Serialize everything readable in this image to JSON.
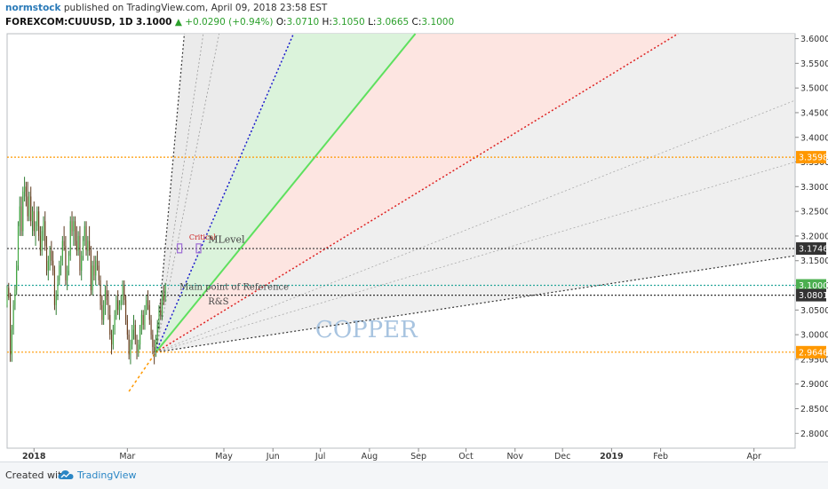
{
  "header": {
    "author": "normstock",
    "published": "published on TradingView.com, April 09, 2018 23:58 EST",
    "symbol": "FOREXCOM:CUUUSD, 1D",
    "price": "3.1000",
    "change_arrow": "▲",
    "change": "+0.0290 (+0.94%)",
    "o_label": "O:",
    "o_value": "3.0710",
    "h_label": "H:",
    "h_value": "3.1050",
    "l_label": "L:",
    "l_value": "3.0665",
    "c_label": "C:",
    "c_value": "3.1000"
  },
  "footer": {
    "created_with": "Created with",
    "brand": "TradingView"
  },
  "chart_data": {
    "type": "candlestick",
    "symbol": "FOREXCOM:CUUUSD",
    "interval": "1D",
    "watermark": "COPPER",
    "ylim": [
      2.77,
      3.61
    ],
    "y_ticks": [
      "3.6000",
      "3.5500",
      "3.5000",
      "3.4500",
      "3.4000",
      "3.3500",
      "3.3000",
      "3.2500",
      "3.2000",
      "3.1500",
      "3.1000",
      "3.0500",
      "3.0000",
      "2.9500",
      "2.9000",
      "2.8500",
      "2.8000"
    ],
    "x_ticks": [
      {
        "label": "2018",
        "x": 0
      },
      {
        "label": "Mar",
        "x": 59
      },
      {
        "label": "May",
        "x": 120
      },
      {
        "label": "Jun",
        "x": 151
      },
      {
        "label": "Jul",
        "x": 181
      },
      {
        "label": "Aug",
        "x": 212
      },
      {
        "label": "Sep",
        "x": 243
      },
      {
        "label": "Oct",
        "x": 273
      },
      {
        "label": "Nov",
        "x": 304
      },
      {
        "label": "Dec",
        "x": 334
      },
      {
        "label": "2019",
        "x": 365
      },
      {
        "label": "Feb",
        "x": 396
      },
      {
        "label": "Apr",
        "x": 455
      }
    ],
    "xlim": [
      -17,
      481
    ],
    "price_lines": [
      {
        "value": 3.3598,
        "label": "3.3598",
        "color": "#ff9800",
        "bg": "#ff9800",
        "style": "dotted"
      },
      {
        "value": 3.1746,
        "label": "3.1746",
        "color": "#333333",
        "bg": "#333333",
        "style": "dotted"
      },
      {
        "value": 3.1,
        "label": "3.1000",
        "color": "#26a69a",
        "bg": "#4caf50",
        "style": "dotted"
      },
      {
        "value": 3.0801,
        "label": "3.0801",
        "color": "#333333",
        "bg": "#333333",
        "style": "dotted"
      },
      {
        "value": 2.9646,
        "label": "2.9646",
        "color": "#ff9800",
        "bg": "#ff9800",
        "style": "dotted"
      }
    ],
    "fan_origin": {
      "x": 77,
      "y": 2.9646
    },
    "fan_lines": [
      {
        "to": {
          "x": 95,
          "y": 3.61
        },
        "color": "#333333",
        "style": "dotted",
        "width": 1.2
      },
      {
        "to": {
          "x": 107,
          "y": 3.61
        },
        "color": "#999999",
        "style": "dotted",
        "width": 0.8
      },
      {
        "to": {
          "x": 117,
          "y": 3.61
        },
        "color": "#999999",
        "style": "dotted",
        "width": 0.8
      },
      {
        "to": {
          "x": 164,
          "y": 3.61
        },
        "color": "#1a1acc",
        "style": "dotted",
        "width": 1.5
      },
      {
        "to": {
          "x": 241,
          "y": 3.61
        },
        "color": "#5ee05e",
        "style": "solid",
        "width": 2
      },
      {
        "to": {
          "x": 407,
          "y": 3.61
        },
        "color": "#dd2222",
        "style": "dotted",
        "width": 1.5
      },
      {
        "to": {
          "x": 481,
          "y": 3.475
        },
        "color": "#aaaaaa",
        "style": "dotted",
        "width": 0.8
      },
      {
        "to": {
          "x": 481,
          "y": 3.35
        },
        "color": "#aaaaaa",
        "style": "dotted",
        "width": 0.8
      },
      {
        "to": {
          "x": 481,
          "y": 3.16
        },
        "color": "#333333",
        "style": "dotted",
        "width": 1.2
      }
    ],
    "extra_lines": [
      {
        "from": {
          "x": 60,
          "y": 2.885
        },
        "to": {
          "x": 77,
          "y": 2.9646
        },
        "color": "#ff9800",
        "style": "dotted",
        "width": 1.5
      }
    ],
    "fills": [
      {
        "between": [
          0,
          4
        ],
        "color": "#e8e8e8"
      },
      {
        "between": [
          3,
          4
        ],
        "color": "#d8f5d8"
      },
      {
        "between": [
          4,
          5
        ],
        "color": "#fde0dc"
      },
      {
        "between": [
          5,
          8
        ],
        "color": "#ececec"
      }
    ],
    "annotations": [
      {
        "text": "Critical",
        "x": 98,
        "y": 3.193,
        "color": "#cc2222",
        "font_size": 8
      },
      {
        "text": "MLevel",
        "x": 110,
        "y": 3.186,
        "color": "#444444",
        "font_size": 11
      },
      {
        "text": "Main point of Reference",
        "x": 92,
        "y": 3.091,
        "color": "#444444",
        "font_size": 10
      },
      {
        "text": "R&S",
        "x": 110,
        "y": 3.061,
        "color": "#444444",
        "font_size": 10
      }
    ],
    "markers": [
      {
        "x": 92,
        "y": 3.175,
        "color": "#9c6ad4"
      },
      {
        "x": 104,
        "y": 3.175,
        "color": "#9c6ad4"
      }
    ],
    "candles": [
      [
        -17,
        3.06,
        3.1,
        3.055,
        3.095
      ],
      [
        -16,
        3.095,
        3.105,
        3.07,
        3.075
      ],
      [
        -15,
        3.075,
        3.085,
        2.945,
        2.96
      ],
      [
        -14,
        2.96,
        3.02,
        2.945,
        3.01
      ],
      [
        -13,
        3.01,
        3.07,
        3.0,
        3.06
      ],
      [
        -12,
        3.06,
        3.1,
        3.05,
        3.09
      ],
      [
        -11,
        3.09,
        3.15,
        3.08,
        3.14
      ],
      [
        -10,
        3.14,
        3.23,
        3.13,
        3.22
      ],
      [
        -9,
        3.22,
        3.28,
        3.2,
        3.26
      ],
      [
        -8,
        3.26,
        3.28,
        3.2,
        3.21
      ],
      [
        -7,
        3.21,
        3.3,
        3.2,
        3.29
      ],
      [
        -6,
        3.29,
        3.32,
        3.27,
        3.3
      ],
      [
        -5,
        3.3,
        3.31,
        3.26,
        3.28
      ],
      [
        -4,
        3.28,
        3.31,
        3.23,
        3.24
      ],
      [
        -3,
        3.24,
        3.29,
        3.23,
        3.28
      ],
      [
        -2,
        3.28,
        3.3,
        3.22,
        3.23
      ],
      [
        -1,
        3.23,
        3.26,
        3.2,
        3.25
      ],
      [
        0,
        3.25,
        3.27,
        3.2,
        3.21
      ],
      [
        1,
        3.21,
        3.23,
        3.18,
        3.22
      ],
      [
        2,
        3.22,
        3.26,
        3.21,
        3.25
      ],
      [
        3,
        3.25,
        3.26,
        3.19,
        3.2
      ],
      [
        4,
        3.2,
        3.22,
        3.16,
        3.17
      ],
      [
        5,
        3.17,
        3.22,
        3.16,
        3.21
      ],
      [
        6,
        3.21,
        3.24,
        3.19,
        3.23
      ],
      [
        7,
        3.23,
        3.25,
        3.17,
        3.18
      ],
      [
        8,
        3.18,
        3.2,
        3.12,
        3.13
      ],
      [
        9,
        3.13,
        3.16,
        3.11,
        3.15
      ],
      [
        10,
        3.15,
        3.18,
        3.13,
        3.17
      ],
      [
        11,
        3.17,
        3.19,
        3.14,
        3.15
      ],
      [
        12,
        3.15,
        3.17,
        3.12,
        3.13
      ],
      [
        13,
        3.13,
        3.14,
        3.05,
        3.06
      ],
      [
        14,
        3.06,
        3.09,
        3.04,
        3.08
      ],
      [
        15,
        3.08,
        3.12,
        3.07,
        3.11
      ],
      [
        16,
        3.11,
        3.15,
        3.1,
        3.14
      ],
      [
        17,
        3.14,
        3.16,
        3.12,
        3.15
      ],
      [
        18,
        3.15,
        3.2,
        3.14,
        3.19
      ],
      [
        19,
        3.19,
        3.22,
        3.17,
        3.18
      ],
      [
        20,
        3.18,
        3.2,
        3.1,
        3.11
      ],
      [
        21,
        3.11,
        3.14,
        3.09,
        3.13
      ],
      [
        22,
        3.13,
        3.17,
        3.12,
        3.16
      ],
      [
        23,
        3.16,
        3.24,
        3.15,
        3.23
      ],
      [
        24,
        3.23,
        3.25,
        3.2,
        3.21
      ],
      [
        25,
        3.21,
        3.24,
        3.18,
        3.23
      ],
      [
        26,
        3.23,
        3.24,
        3.18,
        3.19
      ],
      [
        27,
        3.19,
        3.22,
        3.16,
        3.17
      ],
      [
        28,
        3.17,
        3.21,
        3.16,
        3.2
      ],
      [
        29,
        3.2,
        3.22,
        3.12,
        3.13
      ],
      [
        30,
        3.13,
        3.17,
        3.11,
        3.16
      ],
      [
        31,
        3.16,
        3.2,
        3.15,
        3.19
      ],
      [
        32,
        3.19,
        3.23,
        3.18,
        3.22
      ],
      [
        33,
        3.22,
        3.23,
        3.16,
        3.17
      ],
      [
        34,
        3.17,
        3.2,
        3.15,
        3.19
      ],
      [
        35,
        3.19,
        3.22,
        3.16,
        3.17
      ],
      [
        36,
        3.17,
        3.18,
        3.08,
        3.09
      ],
      [
        37,
        3.09,
        3.15,
        3.08,
        3.14
      ],
      [
        38,
        3.14,
        3.16,
        3.11,
        3.12
      ],
      [
        39,
        3.12,
        3.16,
        3.1,
        3.15
      ],
      [
        40,
        3.15,
        3.17,
        3.13,
        3.14
      ],
      [
        41,
        3.14,
        3.15,
        3.1,
        3.11
      ],
      [
        42,
        3.11,
        3.12,
        3.05,
        3.06
      ],
      [
        43,
        3.06,
        3.08,
        3.02,
        3.03
      ],
      [
        44,
        3.03,
        3.07,
        3.02,
        3.06
      ],
      [
        45,
        3.06,
        3.1,
        3.04,
        3.09
      ],
      [
        46,
        3.09,
        3.11,
        3.06,
        3.07
      ],
      [
        47,
        3.07,
        3.09,
        3.03,
        3.04
      ],
      [
        48,
        3.04,
        3.06,
        2.99,
        3.0
      ],
      [
        49,
        3.0,
        3.01,
        2.96,
        2.98
      ],
      [
        50,
        2.98,
        3.02,
        2.97,
        3.01
      ],
      [
        51,
        3.01,
        3.05,
        3.0,
        3.04
      ],
      [
        52,
        3.04,
        3.08,
        3.03,
        3.07
      ],
      [
        53,
        3.07,
        3.09,
        3.04,
        3.05
      ],
      [
        54,
        3.05,
        3.07,
        3.03,
        3.06
      ],
      [
        55,
        3.06,
        3.08,
        3.05,
        3.07
      ],
      [
        56,
        3.07,
        3.11,
        3.06,
        3.1
      ],
      [
        57,
        3.1,
        3.11,
        3.06,
        3.07
      ],
      [
        58,
        3.07,
        3.08,
        3.02,
        3.03
      ],
      [
        59,
        3.03,
        3.04,
        2.99,
        3.0
      ],
      [
        60,
        3.0,
        3.01,
        2.95,
        2.96
      ],
      [
        61,
        2.96,
        2.99,
        2.94,
        2.98
      ],
      [
        62,
        2.98,
        3.02,
        2.97,
        3.01
      ],
      [
        63,
        3.01,
        3.04,
        2.99,
        3.02
      ],
      [
        64,
        3.02,
        3.03,
        2.98,
        2.99
      ],
      [
        65,
        2.99,
        3.0,
        2.95,
        2.965
      ],
      [
        66,
        2.965,
        2.99,
        2.955,
        2.98
      ],
      [
        67,
        2.98,
        3.02,
        2.97,
        3.01
      ],
      [
        68,
        3.01,
        3.05,
        3.0,
        3.04
      ],
      [
        69,
        3.04,
        3.05,
        3.01,
        3.02
      ],
      [
        70,
        3.02,
        3.06,
        3.01,
        3.05
      ],
      [
        71,
        3.05,
        3.08,
        3.04,
        3.07
      ],
      [
        72,
        3.07,
        3.09,
        3.05,
        3.06
      ],
      [
        73,
        3.06,
        3.07,
        3.02,
        3.03
      ],
      [
        74,
        3.03,
        3.04,
        2.99,
        3.0
      ],
      [
        75,
        3.0,
        3.01,
        2.96,
        2.975
      ],
      [
        76,
        2.975,
        2.99,
        2.94,
        2.965
      ],
      [
        77,
        2.965,
        3.0,
        2.955,
        2.99
      ],
      [
        78,
        2.99,
        3.03,
        2.98,
        3.02
      ],
      [
        79,
        3.02,
        3.06,
        3.01,
        3.05
      ],
      [
        80,
        3.05,
        3.07,
        3.03,
        3.04
      ],
      [
        81,
        3.04,
        3.09,
        3.03,
        3.08
      ],
      [
        82,
        3.08,
        3.1,
        3.06,
        3.07
      ],
      [
        83,
        3.07,
        3.105,
        3.066,
        3.1
      ]
    ]
  }
}
